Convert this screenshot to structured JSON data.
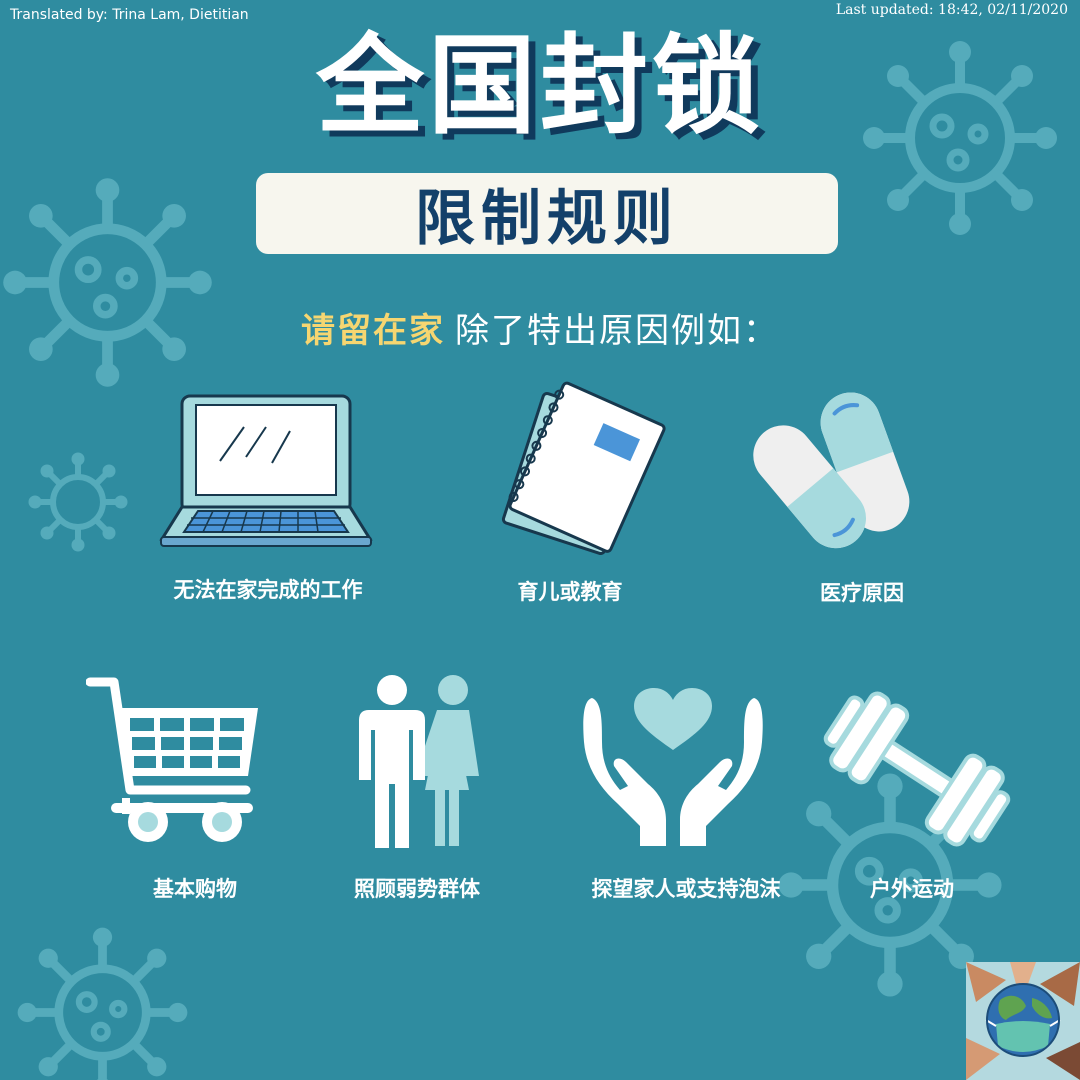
{
  "header": {
    "translated_by": "Translated by: Trina Lam, Dietitian",
    "last_updated": "Last updated: 18:42, 02/11/2020"
  },
  "title": "全国封锁",
  "subtitle": "限制规则",
  "instruction": {
    "highlight": "请留在家",
    "rest": "除了特出原因例如："
  },
  "reasons": [
    {
      "label": "无法在家完成的工作",
      "icon": "laptop-icon"
    },
    {
      "label": "育儿或教育",
      "icon": "notebook-icon"
    },
    {
      "label": "医疗原因",
      "icon": "pill-icon"
    },
    {
      "label": "基本购物",
      "icon": "shopping-cart-icon"
    },
    {
      "label": "照顾弱势群体",
      "icon": "people-icon"
    },
    {
      "label": "探望家人或支持泡沫",
      "icon": "heart-hands-icon"
    },
    {
      "label": "户外运动",
      "icon": "dumbbell-icon"
    }
  ],
  "colors": {
    "background": "#2f8ca0",
    "title_shadow": "#103a5c",
    "subtitle_text": "#13406a",
    "subtitle_box": "#f7f6ee",
    "highlight": "#f6d671",
    "icon_light": "#a6dade"
  }
}
